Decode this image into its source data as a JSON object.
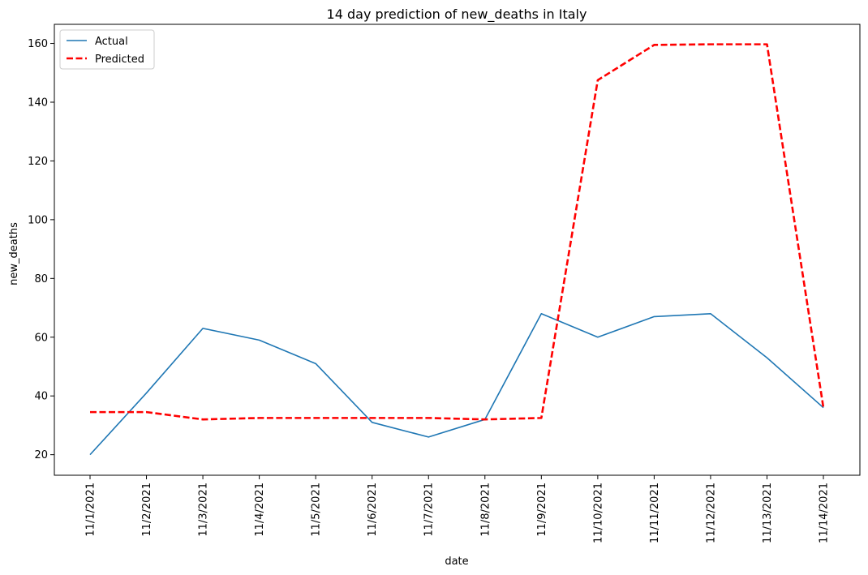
{
  "chart_data": {
    "type": "line",
    "title": "14 day prediction of new_deaths in Italy",
    "xlabel": "date",
    "ylabel": "new_deaths",
    "categories": [
      "11/1/2021",
      "11/2/2021",
      "11/3/2021",
      "11/4/2021",
      "11/5/2021",
      "11/6/2021",
      "11/7/2021",
      "11/8/2021",
      "11/9/2021",
      "11/10/2021",
      "11/11/2021",
      "11/12/2021",
      "11/13/2021",
      "11/14/2021"
    ],
    "yticks": [
      20,
      40,
      60,
      80,
      100,
      120,
      140,
      160
    ],
    "ylim": [
      13,
      166.5
    ],
    "grid": false,
    "legend_position": "top-left",
    "series": [
      {
        "name": "Actual",
        "color": "#1f77b4",
        "style": "solid",
        "values": [
          20,
          41,
          63,
          59,
          51,
          31,
          26,
          32,
          68,
          60,
          67,
          68,
          53,
          36
        ]
      },
      {
        "name": "Predicted",
        "color": "#ff0000",
        "style": "dashed",
        "values": [
          34.5,
          34.5,
          32,
          32.5,
          32.5,
          32.5,
          32.5,
          32,
          32.5,
          147.5,
          159.5,
          159.7,
          159.7,
          36
        ]
      }
    ]
  }
}
